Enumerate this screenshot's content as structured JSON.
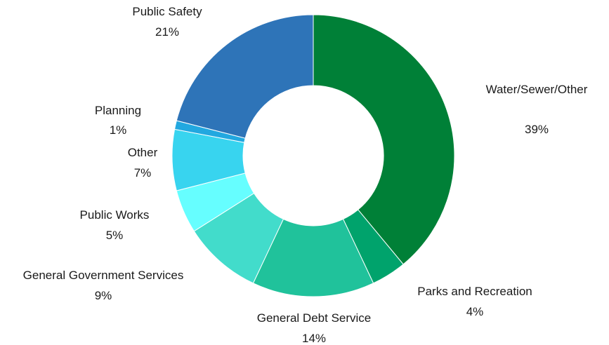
{
  "chart_data": {
    "type": "pie",
    "donut": true,
    "title": "",
    "categories": [
      "Water/Sewer/Other",
      "Parks and Recreation",
      "General Debt Service",
      "General Government Services",
      "Public Works",
      "Other",
      "Planning",
      "Public Safety"
    ],
    "values": [
      39,
      4,
      14,
      9,
      5,
      7,
      1,
      21
    ],
    "value_labels": [
      "39%",
      "4%",
      "14%",
      "9%",
      "5%",
      "7%",
      "1%",
      "21%"
    ],
    "colors": [
      "#008037",
      "#00a36c",
      "#20c29b",
      "#42dccb",
      "#66feff",
      "#38d4ef",
      "#22a8e0",
      "#2e74b8"
    ]
  }
}
